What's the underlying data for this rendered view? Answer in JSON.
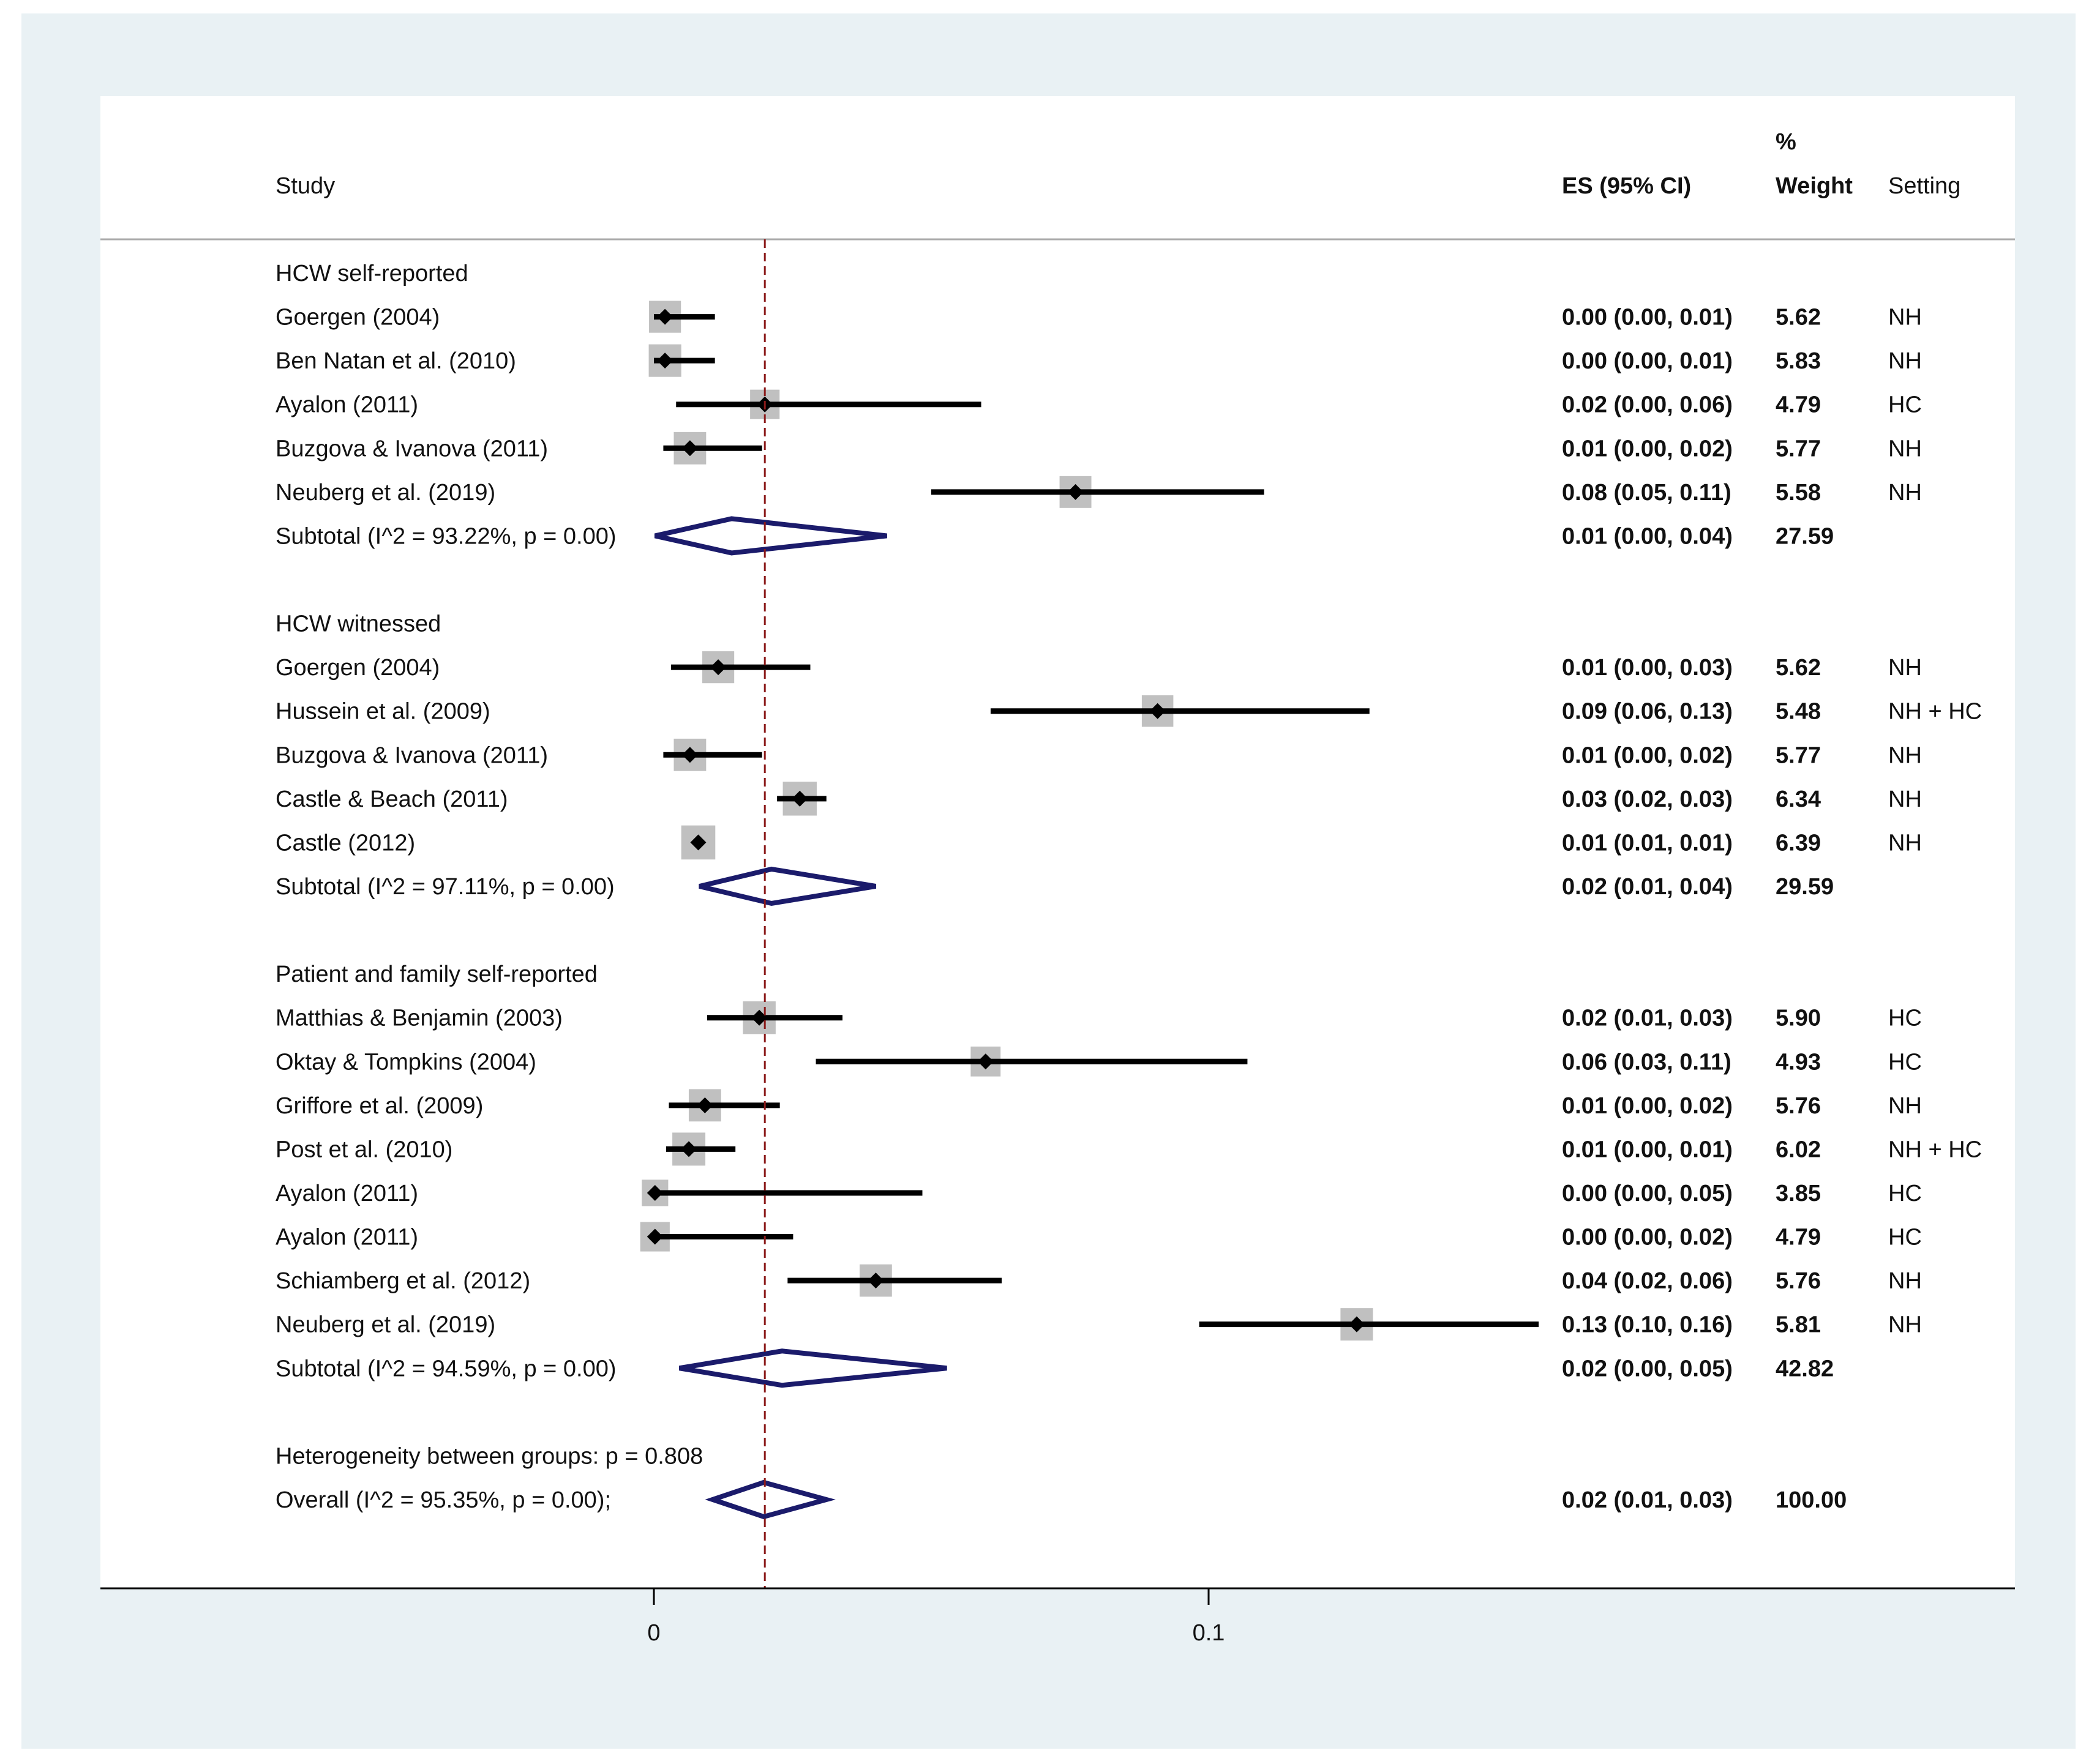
{
  "chart_data": {
    "type": "forest",
    "headers": {
      "study": "Study",
      "es": "ES (95% CI)",
      "weight_top": "%",
      "weight": "Weight",
      "setting": "Setting"
    },
    "xaxis": {
      "ticks": [
        0,
        0.1
      ],
      "tick_labels": [
        "0",
        "0.1"
      ],
      "range": [
        -0.035,
        0.31
      ]
    },
    "reference_line": 0.02,
    "colors": {
      "box": "#c0c0c0",
      "diamond": "#1b1b6b",
      "refline": "#8b1a1a",
      "panel_bg": "#e9f1f4"
    },
    "groups": [
      {
        "label": "HCW self-reported",
        "studies": [
          {
            "name": "Goergen (2004)",
            "es_ci": "0.00 (0.00, 0.01)",
            "weight": "5.62",
            "setting": "NH",
            "es": 0.002,
            "lo": 0.0,
            "hi": 0.011
          },
          {
            "name": "Ben Natan et al. (2010)",
            "es_ci": "0.00 (0.00, 0.01)",
            "weight": "5.83",
            "setting": "NH",
            "es": 0.002,
            "lo": 0.0,
            "hi": 0.011
          },
          {
            "name": "Ayalon (2011)",
            "es_ci": "0.02 (0.00, 0.06)",
            "weight": "4.79",
            "setting": "HC",
            "es": 0.02,
            "lo": 0.004,
            "hi": 0.059
          },
          {
            "name": "Buzgova & Ivanova (2011)",
            "es_ci": "0.01 (0.00, 0.02)",
            "weight": "5.77",
            "setting": "NH",
            "es": 0.0065,
            "lo": 0.0017,
            "hi": 0.0195
          },
          {
            "name": "Neuberg et al. (2019)",
            "es_ci": "0.08 (0.05, 0.11)",
            "weight": "5.58",
            "setting": "NH",
            "es": 0.076,
            "lo": 0.05,
            "hi": 0.11
          }
        ],
        "subtotal": {
          "label": "Subtotal  (I^2 = 93.22%, p = 0.00)",
          "es_ci": "0.01 (0.00, 0.04)",
          "weight": "27.59",
          "es": 0.014,
          "lo": 0.0002,
          "hi": 0.042
        }
      },
      {
        "label": "HCW witnessed",
        "studies": [
          {
            "name": "Goergen (2004)",
            "es_ci": "0.01 (0.00, 0.03)",
            "weight": "5.62",
            "setting": "NH",
            "es": 0.0116,
            "lo": 0.0031,
            "hi": 0.0282
          },
          {
            "name": "Hussein et al. (2009)",
            "es_ci": "0.09 (0.06, 0.13)",
            "weight": "5.48",
            "setting": "NH + HC",
            "es": 0.0908,
            "lo": 0.0607,
            "hi": 0.129
          },
          {
            "name": "Buzgova & Ivanova (2011)",
            "es_ci": "0.01 (0.00, 0.02)",
            "weight": "5.77",
            "setting": "NH",
            "es": 0.0065,
            "lo": 0.0017,
            "hi": 0.0195
          },
          {
            "name": "Castle & Beach (2011)",
            "es_ci": "0.03 (0.02, 0.03)",
            "weight": "6.34",
            "setting": "NH",
            "es": 0.0263,
            "lo": 0.0222,
            "hi": 0.0311
          },
          {
            "name": "Castle (2012)",
            "es_ci": "0.01 (0.01, 0.01)",
            "weight": "6.39",
            "setting": "NH",
            "es": 0.008,
            "lo": 0.0075,
            "hi": 0.0085
          }
        ],
        "subtotal": {
          "label": "Subtotal  (I^2 = 97.11%, p = 0.00)",
          "es_ci": "0.02 (0.01, 0.04)",
          "weight": "29.59",
          "es": 0.0212,
          "lo": 0.0082,
          "hi": 0.04
        }
      },
      {
        "label": "Patient and family self-reported",
        "studies": [
          {
            "name": "Matthias & Benjamin (2003)",
            "es_ci": "0.02 (0.01, 0.03)",
            "weight": "5.90",
            "setting": "HC",
            "es": 0.019,
            "lo": 0.0096,
            "hi": 0.034
          },
          {
            "name": "Oktay & Tompkins (2004)",
            "es_ci": "0.06 (0.03, 0.11)",
            "weight": "4.93",
            "setting": "HC",
            "es": 0.0598,
            "lo": 0.0292,
            "hi": 0.107
          },
          {
            "name": "Griffore et al. (2009)",
            "es_ci": "0.01 (0.00, 0.02)",
            "weight": "5.76",
            "setting": "NH",
            "es": 0.0092,
            "lo": 0.0027,
            "hi": 0.0227
          },
          {
            "name": "Post et al. (2010)",
            "es_ci": "0.01 (0.00, 0.01)",
            "weight": "6.02",
            "setting": "NH + HC",
            "es": 0.0063,
            "lo": 0.0022,
            "hi": 0.0147
          },
          {
            "name": "Ayalon (2011)",
            "es_ci": "0.00 (0.00, 0.05)",
            "weight": "3.85",
            "setting": "HC",
            "es": 0.0002,
            "lo": 0.0,
            "hi": 0.0484
          },
          {
            "name": "Ayalon (2011)",
            "es_ci": "0.00 (0.00, 0.02)",
            "weight": "4.79",
            "setting": "HC",
            "es": 0.0002,
            "lo": 0.0,
            "hi": 0.0251
          },
          {
            "name": "Schiamberg et al. (2012)",
            "es_ci": "0.04 (0.02, 0.06)",
            "weight": "5.76",
            "setting": "NH",
            "es": 0.04,
            "lo": 0.0241,
            "hi": 0.0627
          },
          {
            "name": "Neuberg et al. (2019)",
            "es_ci": "0.13 (0.10, 0.16)",
            "weight": "5.81",
            "setting": "NH",
            "es": 0.1267,
            "lo": 0.0983,
            "hi": 0.1595
          }
        ],
        "subtotal": {
          "label": "Subtotal  (I^2 = 94.59%, p = 0.00)",
          "es_ci": "0.02 (0.00, 0.05)",
          "weight": "42.82",
          "es": 0.0231,
          "lo": 0.0046,
          "hi": 0.0528
        }
      }
    ],
    "heterogeneity": "Heterogeneity between groups: p = 0.808",
    "overall": {
      "label": "Overall  (I^2 = 95.35%, p = 0.00);",
      "es_ci": "0.02 (0.01, 0.03)",
      "weight": "100.00",
      "es": 0.0198,
      "lo": 0.0106,
      "hi": 0.0311
    }
  }
}
